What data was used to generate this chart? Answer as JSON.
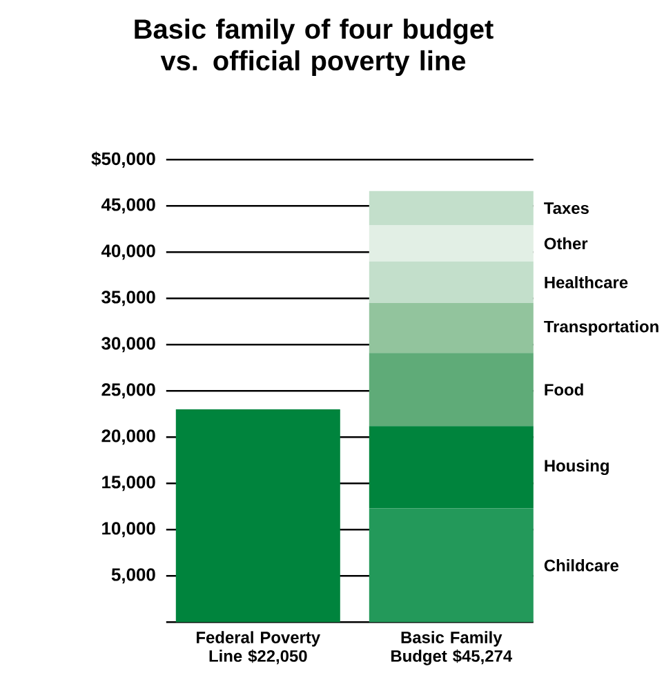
{
  "chart_data": {
    "type": "bar",
    "title": "Basic family of four budget vs. official poverty line",
    "categories": [
      "Federal Poverty Line $22,050",
      "Basic Family Budget $45,274"
    ],
    "stacked": true,
    "grid": "y",
    "ylim": [
      0,
      50000
    ],
    "yticks": [
      {
        "value": 0,
        "label": null
      },
      {
        "value": 5000,
        "label": "5,000"
      },
      {
        "value": 10000,
        "label": "10,000"
      },
      {
        "value": 15000,
        "label": "15,000"
      },
      {
        "value": 20000,
        "label": "20,000"
      },
      {
        "value": 25000,
        "label": "25,000"
      },
      {
        "value": 30000,
        "label": "30,000"
      },
      {
        "value": 35000,
        "label": "35,000"
      },
      {
        "value": 40000,
        "label": "40,000"
      },
      {
        "value": 45000,
        "label": "45,000"
      },
      {
        "value": 50000,
        "label": "$50,000"
      }
    ],
    "series": [
      {
        "color": "#00843d",
        "values": [
          23000,
          null
        ]
      },
      {
        "name": "Childcare",
        "color": "#23995a",
        "values": [
          null,
          12300
        ]
      },
      {
        "name": "Housing",
        "color": "#00843d",
        "values": [
          null,
          8900
        ]
      },
      {
        "name": "Food",
        "color": "#5fab78",
        "values": [
          null,
          7900
        ]
      },
      {
        "name": "Transportation",
        "color": "#92c49d",
        "values": [
          null,
          5400
        ]
      },
      {
        "name": "Healthcare",
        "color": "#c3dfcb",
        "values": [
          null,
          4500
        ]
      },
      {
        "name": "Other",
        "color": "#e2efe5",
        "values": [
          null,
          3900
        ]
      },
      {
        "name": "Taxes",
        "color": "#c3dfcb",
        "values": [
          null,
          3700
        ]
      }
    ]
  }
}
